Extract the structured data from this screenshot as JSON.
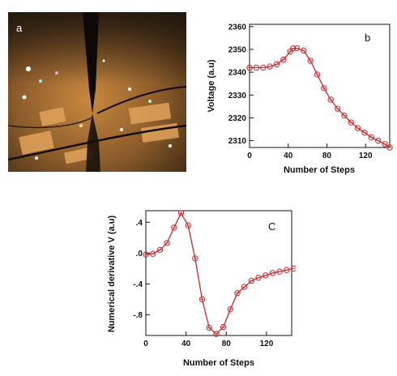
{
  "figure": {
    "panel_a": {
      "label": "a"
    },
    "panel_b": {
      "label": "b"
    },
    "panel_c": {
      "label": "C"
    }
  },
  "colors": {
    "series": "#c8282d",
    "axis": "#111111"
  },
  "chart_data": [
    {
      "panel": "b",
      "type": "line",
      "xlabel": "Number of Steps",
      "ylabel": "Voltage (a.u)",
      "xlim": [
        0,
        145
      ],
      "ylim": [
        2307,
        2361
      ],
      "xticks": [
        0,
        40,
        80,
        120
      ],
      "yticks": [
        2310,
        2320,
        2330,
        2340,
        2350,
        2360
      ],
      "xtick_labels": [
        "0",
        "40",
        "80",
        "120"
      ],
      "ytick_labels": [
        "2310",
        "2320",
        "2330",
        "2340",
        "2350",
        "2360"
      ],
      "marker": "circle-open",
      "grid": false,
      "series": [
        {
          "x": [
            0,
            7,
            14,
            21,
            28,
            35,
            42,
            45,
            49,
            56,
            63,
            70,
            77,
            84,
            91,
            98,
            105,
            112,
            119,
            126,
            133,
            140,
            145
          ],
          "y": [
            2342,
            2342,
            2342,
            2342.5,
            2343.5,
            2345.5,
            2349,
            2350.5,
            2350.5,
            2349.5,
            2345,
            2339,
            2333,
            2328,
            2324,
            2321,
            2318,
            2315.5,
            2313.5,
            2311.5,
            2310,
            2308.5,
            2307
          ]
        }
      ]
    },
    {
      "panel": "c",
      "type": "line",
      "xlabel": "Number of Steps",
      "ylabel": "Numerical derivative V (a.u)",
      "xlim": [
        0,
        145
      ],
      "ylim": [
        -1.07,
        0.55
      ],
      "xticks": [
        0,
        40,
        80,
        120
      ],
      "yticks": [
        0.4,
        0.0,
        -0.4,
        -0.8
      ],
      "xtick_labels": [
        "0",
        "40",
        "80",
        "120"
      ],
      "ytick_labels": [
        ".4",
        ".0",
        "-.4",
        "-.8"
      ],
      "marker": "circle-open",
      "grid": false,
      "series": [
        {
          "x": [
            0,
            7,
            14,
            21,
            28,
            35,
            42,
            49,
            56,
            63,
            70,
            77,
            84,
            91,
            98,
            105,
            112,
            119,
            126,
            133,
            140,
            147
          ],
          "y": [
            -0.02,
            -0.01,
            0.04,
            0.13,
            0.33,
            0.52,
            0.36,
            -0.07,
            -0.6,
            -0.97,
            -1.05,
            -0.96,
            -0.73,
            -0.52,
            -0.44,
            -0.36,
            -0.32,
            -0.29,
            -0.26,
            -0.24,
            -0.22,
            -0.2
          ]
        }
      ]
    }
  ]
}
